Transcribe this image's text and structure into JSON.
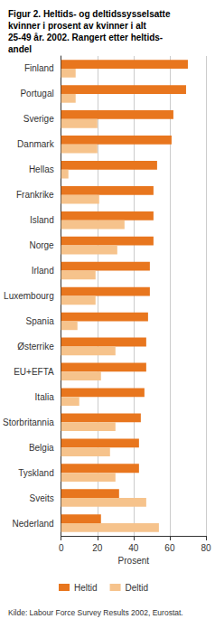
{
  "chart_data": {
    "type": "bar",
    "orientation": "horizontal",
    "title": "Figur 2. Heltids- og deltidssysselsatte\nkvinner i prosent av kvinner i alt\n25-49 år. 2002. Rangert etter heltids-\nandel",
    "source": "Kilde: Labour Force Survey Results 2002, Eurostat.",
    "x_label": "Prosent",
    "categories": [
      "Finland",
      "Portugal",
      "Sverige",
      "Danmark",
      "Hellas",
      "Frankrike",
      "Island",
      "Norge",
      "Irland",
      "Luxembourg",
      "Spania",
      "Østerrike",
      "EU+EFTA",
      "Italia",
      "Storbritannia",
      "Belgia",
      "Tyskland",
      "Sveits",
      "Nederland"
    ],
    "series": [
      {
        "name": "Heltid",
        "color": "#e8761e",
        "values": [
          70,
          69,
          62,
          61,
          53,
          51,
          51,
          51,
          49,
          49,
          48,
          47,
          47,
          46,
          44,
          43,
          43,
          32,
          22
        ]
      },
      {
        "name": "Deltid",
        "color": "#f6c38c",
        "values": [
          8,
          8,
          20,
          20,
          4,
          21,
          35,
          31,
          19,
          19,
          9,
          30,
          22,
          10,
          30,
          27,
          30,
          47,
          54
        ]
      }
    ],
    "xlim": [
      0,
      80
    ],
    "xticks": [
      0,
      20,
      40,
      60,
      80
    ],
    "grid": true,
    "legend": "bottom-left"
  }
}
